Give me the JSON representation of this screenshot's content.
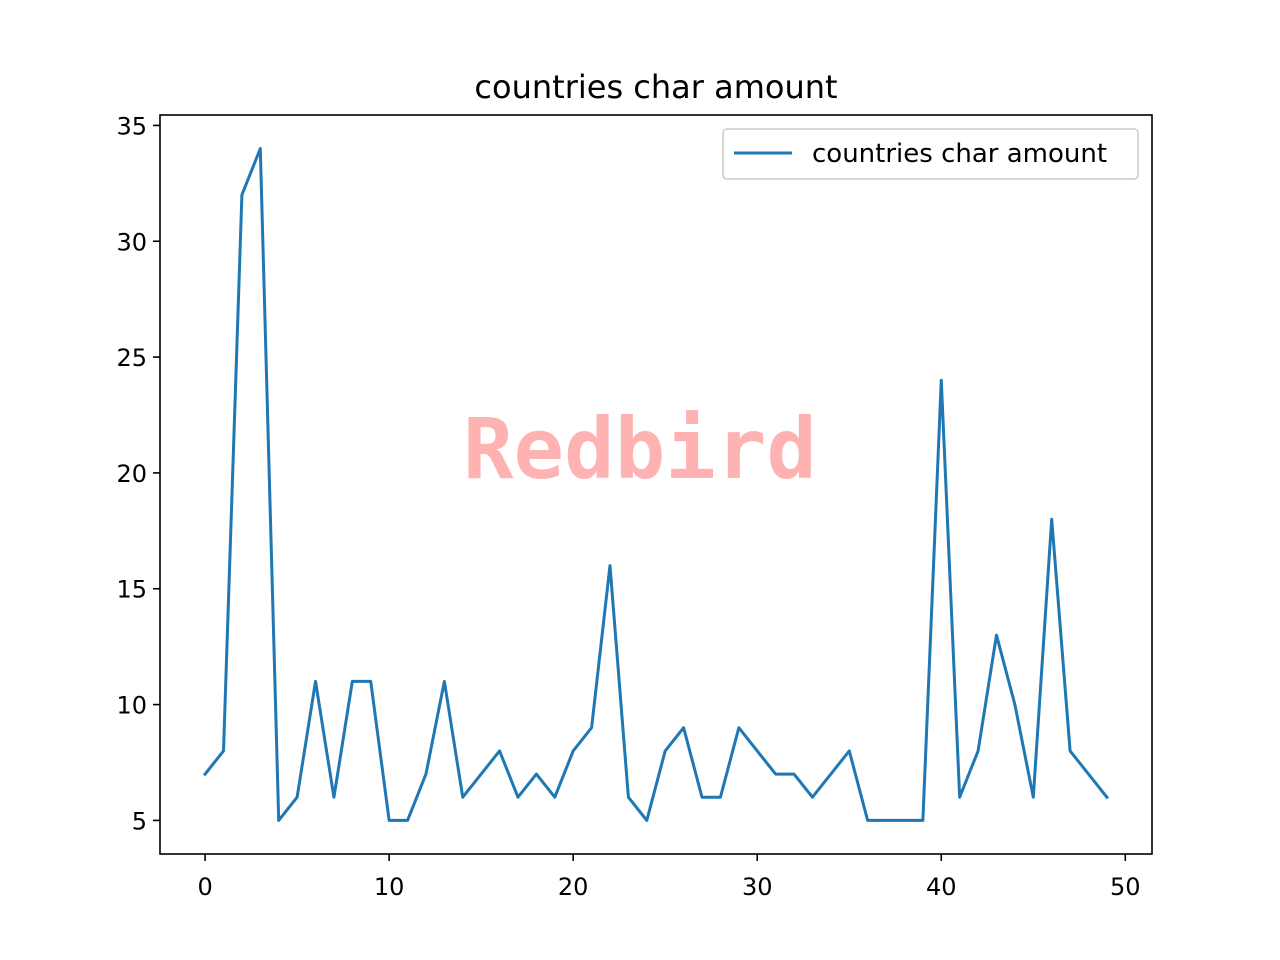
{
  "chart_data": {
    "type": "line",
    "title": "countries char amount",
    "xlabel": "",
    "ylabel": "",
    "xlim": [
      -2.45,
      51.45
    ],
    "ylim": [
      3.55,
      35.45
    ],
    "xticks": [
      0,
      10,
      20,
      30,
      40,
      50
    ],
    "xtick_labels": [
      "0",
      "10",
      "20",
      "30",
      "40",
      "50"
    ],
    "yticks": [
      5,
      10,
      15,
      20,
      25,
      30,
      35
    ],
    "ytick_labels": [
      "5",
      "10",
      "15",
      "20",
      "25",
      "30",
      "35"
    ],
    "grid": false,
    "legend_position": "top-right",
    "series": [
      {
        "name": "countries char amount",
        "color": "#1f77b4",
        "x": [
          0,
          1,
          2,
          3,
          4,
          5,
          6,
          7,
          8,
          9,
          10,
          11,
          12,
          13,
          14,
          15,
          16,
          17,
          18,
          19,
          20,
          21,
          22,
          23,
          24,
          25,
          26,
          27,
          28,
          29,
          30,
          31,
          32,
          33,
          34,
          35,
          36,
          37,
          38,
          39,
          40,
          41,
          42,
          43,
          44,
          45,
          46,
          47,
          48,
          49
        ],
        "y": [
          7,
          8,
          32,
          34,
          5,
          6,
          11,
          6,
          11,
          11,
          5,
          5,
          7,
          11,
          6,
          7,
          8,
          6,
          7,
          6,
          8,
          9,
          16,
          6,
          5,
          8,
          9,
          6,
          6,
          9,
          8,
          7,
          7,
          6,
          7,
          8,
          5,
          5,
          5,
          5,
          24,
          6,
          8,
          13,
          10,
          6,
          18,
          8,
          7,
          6
        ]
      }
    ]
  },
  "watermark": {
    "text": "Redbird",
    "color": "#ff0000"
  }
}
